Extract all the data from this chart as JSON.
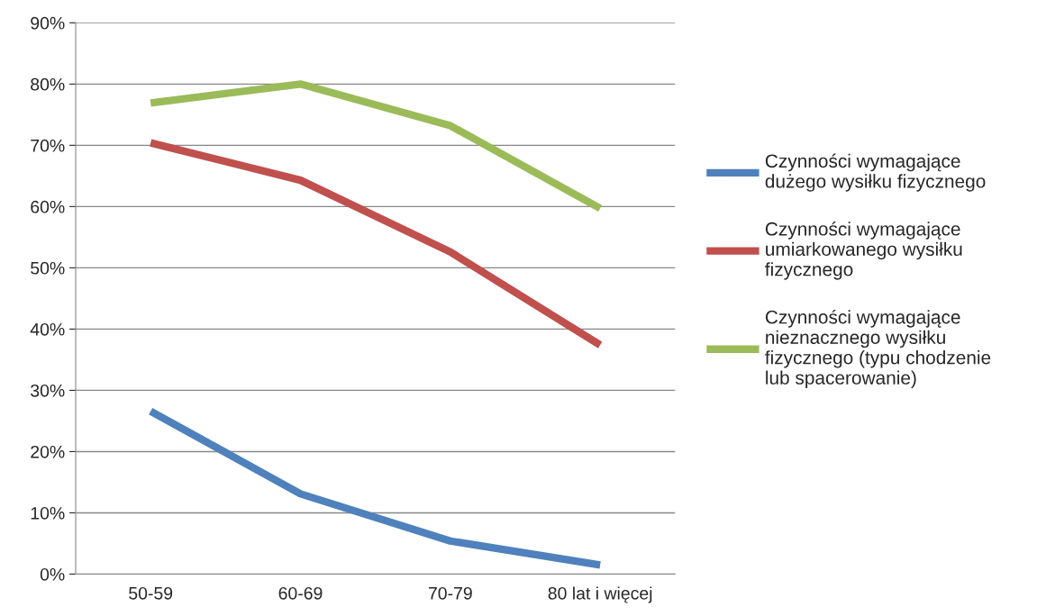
{
  "chart_data": {
    "type": "line",
    "categories": [
      "50-59",
      "60-69",
      "70-79",
      "80 lat i więcej"
    ],
    "series": [
      {
        "name": "Czynności wymagające\ndużego wysiłku fizycznego",
        "color": "#4f81bd",
        "values": [
          26.6,
          13.1,
          5.4,
          1.5
        ]
      },
      {
        "name": "Czynności wymagające\numiarkowanego wysiłku\nfizycznego",
        "color": "#c0504d",
        "values": [
          70.4,
          64.3,
          52.6,
          37.4
        ]
      },
      {
        "name": "Czynności wymagające\nnieznacznego wysiłku\nfizycznego (typu chodzenie\nlub spacerowanie)",
        "color": "#9bbb59",
        "values": [
          76.9,
          80.0,
          73.2,
          59.7
        ]
      }
    ],
    "ylim": [
      0,
      90
    ],
    "yticks": [
      {
        "value": 0,
        "label": "0%"
      },
      {
        "value": 10,
        "label": "10%"
      },
      {
        "value": 20,
        "label": "20%"
      },
      {
        "value": 30,
        "label": "30%"
      },
      {
        "value": 40,
        "label": "40%"
      },
      {
        "value": 50,
        "label": "50%"
      },
      {
        "value": 60,
        "label": "60%"
      },
      {
        "value": 70,
        "label": "70%"
      },
      {
        "value": 80,
        "label": "80%"
      },
      {
        "value": 90,
        "label": "90%"
      }
    ],
    "grid": "y",
    "legend": "right",
    "marker": "none",
    "line_style": "solid"
  }
}
